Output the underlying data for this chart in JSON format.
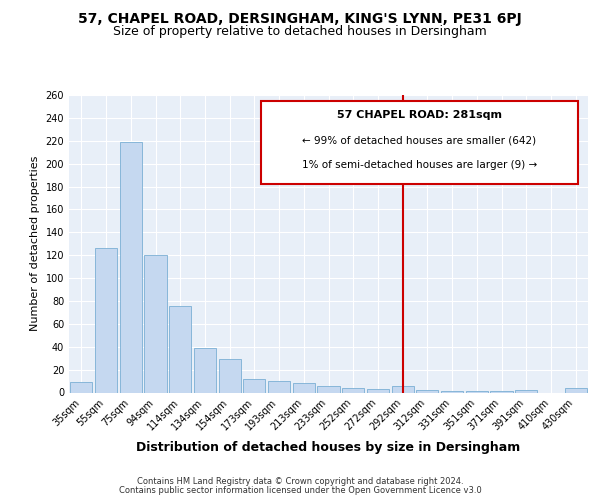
{
  "title1": "57, CHAPEL ROAD, DERSINGHAM, KING'S LYNN, PE31 6PJ",
  "title2": "Size of property relative to detached houses in Dersingham",
  "xlabel": "Distribution of detached houses by size in Dersingham",
  "ylabel": "Number of detached properties",
  "categories": [
    "35sqm",
    "55sqm",
    "75sqm",
    "94sqm",
    "114sqm",
    "134sqm",
    "154sqm",
    "173sqm",
    "193sqm",
    "213sqm",
    "233sqm",
    "252sqm",
    "272sqm",
    "292sqm",
    "312sqm",
    "331sqm",
    "351sqm",
    "371sqm",
    "391sqm",
    "410sqm",
    "430sqm"
  ],
  "values": [
    9,
    126,
    219,
    120,
    76,
    39,
    29,
    12,
    10,
    8,
    6,
    4,
    3,
    6,
    2,
    1,
    1,
    1,
    2,
    0,
    4
  ],
  "bar_color": "#c5d8f0",
  "bar_edge_color": "#7bafd4",
  "vline_x_index": 13,
  "annotation_line1": "57 CHAPEL ROAD: 281sqm",
  "annotation_line2": "← 99% of detached houses are smaller (642)",
  "annotation_line3": "1% of semi-detached houses are larger (9) →",
  "box_edge_color": "#cc0000",
  "vline_color": "#cc0000",
  "ylim": [
    0,
    260
  ],
  "yticks": [
    0,
    20,
    40,
    60,
    80,
    100,
    120,
    140,
    160,
    180,
    200,
    220,
    240,
    260
  ],
  "footer1": "Contains HM Land Registry data © Crown copyright and database right 2024.",
  "footer2": "Contains public sector information licensed under the Open Government Licence v3.0",
  "bg_color": "#e8eff8",
  "title1_fontsize": 10,
  "title2_fontsize": 9,
  "xlabel_fontsize": 9,
  "ylabel_fontsize": 8,
  "tick_fontsize": 7,
  "footer_fontsize": 6,
  "annot_fontsize": 8
}
